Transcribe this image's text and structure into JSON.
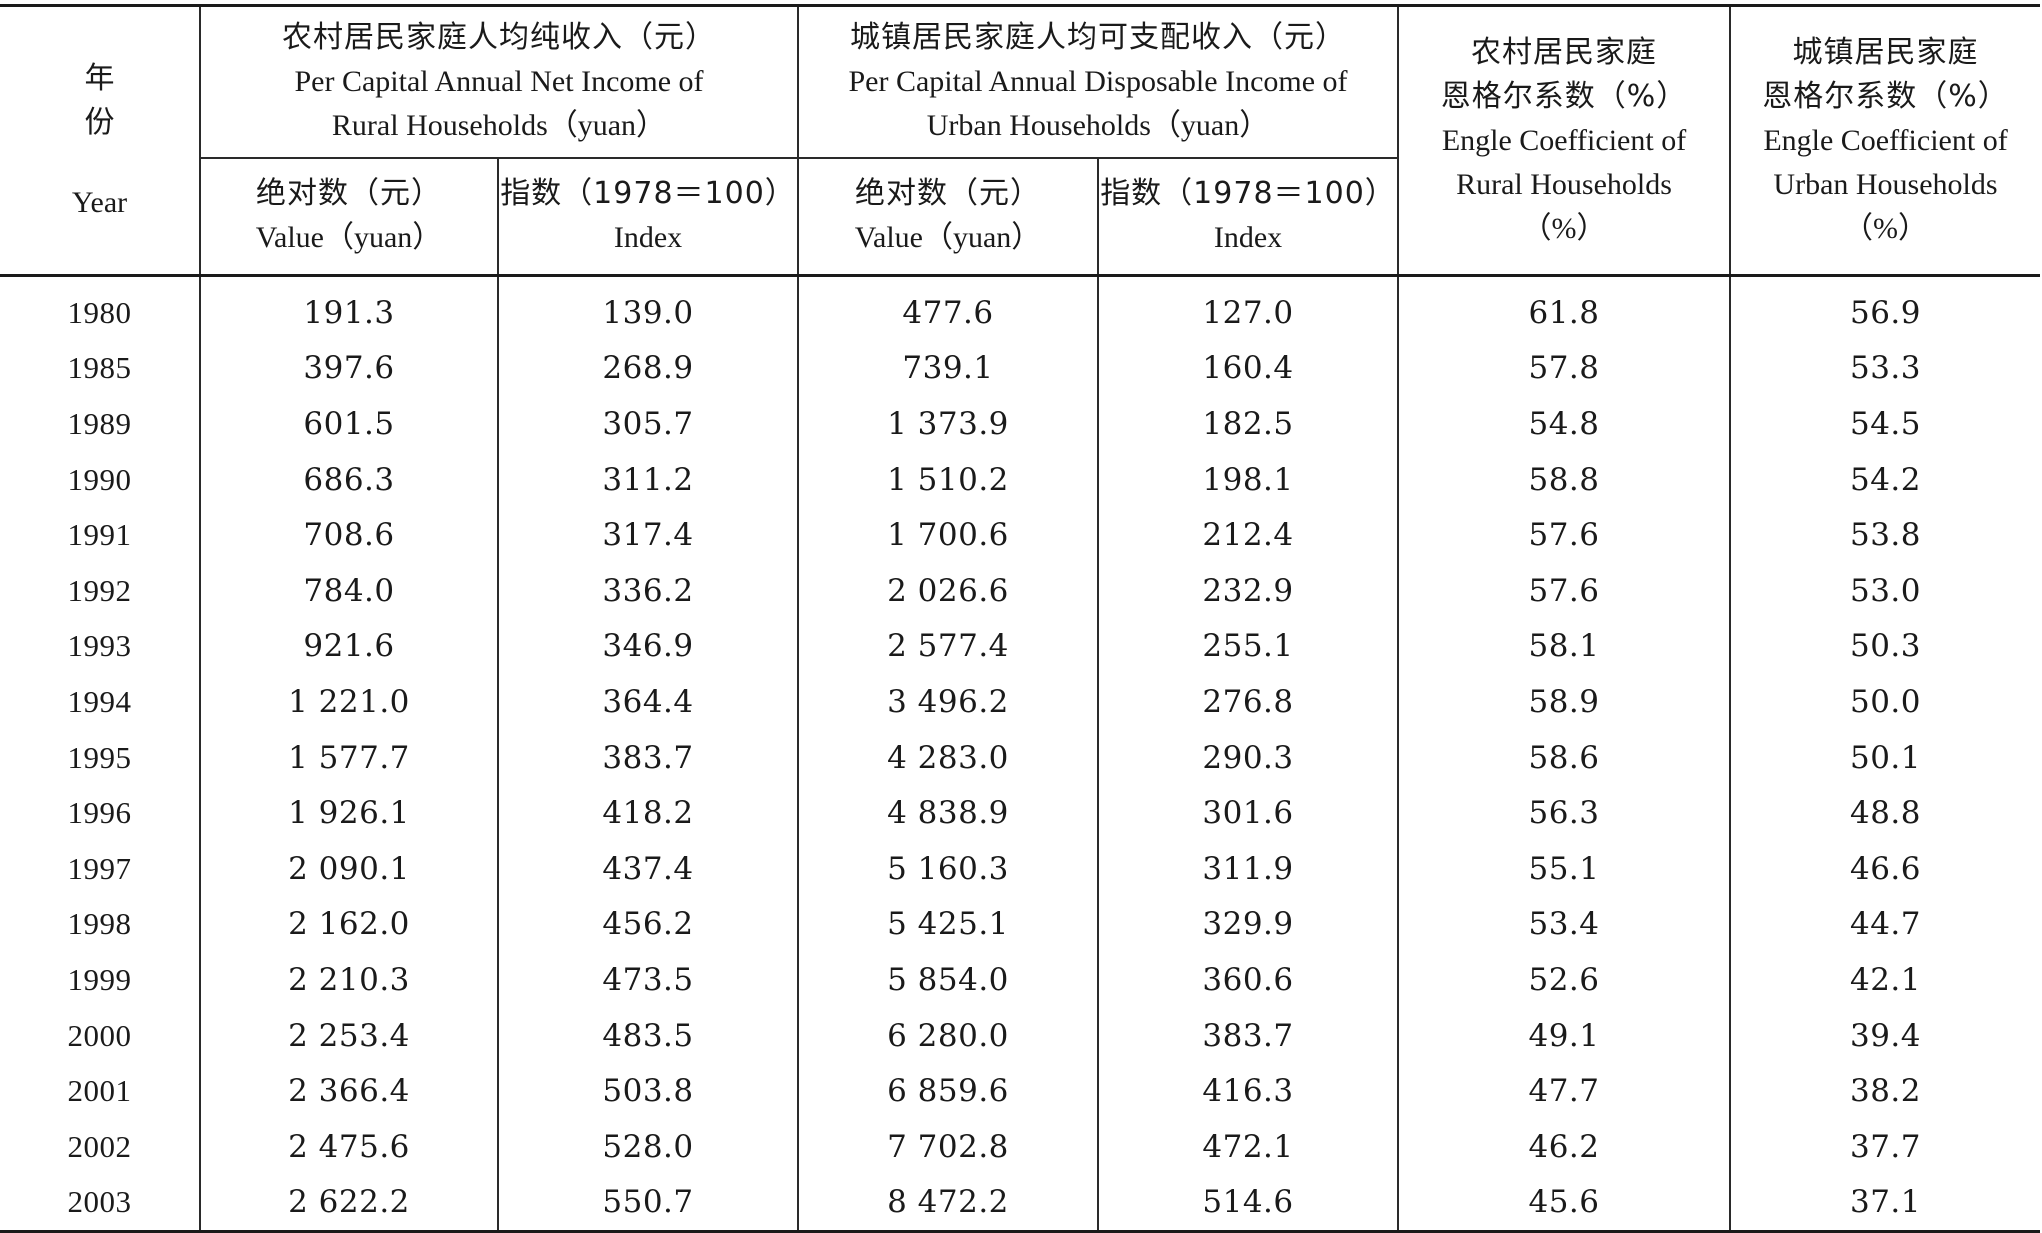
{
  "headers": {
    "year": {
      "zh": "年 份",
      "en": "Year"
    },
    "rural_income": {
      "zh": "农村居民家庭人均纯收入（元）",
      "en1": "Per Capital Annual Net Income of",
      "en2": "Rural Households（yuan）"
    },
    "urban_income": {
      "zh": "城镇居民家庭人均可支配收入（元）",
      "en1": "Per Capital Annual Disposable Income of",
      "en2": "Urban Households（yuan）"
    },
    "rural_engel": {
      "zh1": "农村居民家庭",
      "zh2": "恩格尔系数（%）",
      "en1": "Engle Coefficient of",
      "en2": "Rural Households",
      "en3": "（%）"
    },
    "urban_engel": {
      "zh1": "城镇居民家庭",
      "zh2": "恩格尔系数（%）",
      "en1": "Engle Coefficient of",
      "en2": "Urban Households",
      "en3": "（%）"
    },
    "rural_value": {
      "zh": "绝对数（元）",
      "en": "Value（yuan）"
    },
    "rural_index": {
      "zh": "指数（1978＝100）",
      "en": "Index"
    },
    "urban_value": {
      "zh": "绝对数（元）",
      "en": "Value（yuan）"
    },
    "urban_index": {
      "zh": "指数（1978＝100）",
      "en": "Index"
    }
  },
  "rows": [
    {
      "year": "1980",
      "rural_value": "191.3",
      "rural_index": "139.0",
      "urban_value": "477.6",
      "urban_index": "127.0",
      "rural_engel": "61.8",
      "urban_engel": "56.9"
    },
    {
      "year": "1985",
      "rural_value": "397.6",
      "rural_index": "268.9",
      "urban_value": "739.1",
      "urban_index": "160.4",
      "rural_engel": "57.8",
      "urban_engel": "53.3"
    },
    {
      "year": "1989",
      "rural_value": "601.5",
      "rural_index": "305.7",
      "urban_value": "1 373.9",
      "urban_index": "182.5",
      "rural_engel": "54.8",
      "urban_engel": "54.5"
    },
    {
      "year": "1990",
      "rural_value": "686.3",
      "rural_index": "311.2",
      "urban_value": "1 510.2",
      "urban_index": "198.1",
      "rural_engel": "58.8",
      "urban_engel": "54.2"
    },
    {
      "year": "1991",
      "rural_value": "708.6",
      "rural_index": "317.4",
      "urban_value": "1 700.6",
      "urban_index": "212.4",
      "rural_engel": "57.6",
      "urban_engel": "53.8"
    },
    {
      "year": "1992",
      "rural_value": "784.0",
      "rural_index": "336.2",
      "urban_value": "2 026.6",
      "urban_index": "232.9",
      "rural_engel": "57.6",
      "urban_engel": "53.0"
    },
    {
      "year": "1993",
      "rural_value": "921.6",
      "rural_index": "346.9",
      "urban_value": "2 577.4",
      "urban_index": "255.1",
      "rural_engel": "58.1",
      "urban_engel": "50.3"
    },
    {
      "year": "1994",
      "rural_value": "1 221.0",
      "rural_index": "364.4",
      "urban_value": "3 496.2",
      "urban_index": "276.8",
      "rural_engel": "58.9",
      "urban_engel": "50.0"
    },
    {
      "year": "1995",
      "rural_value": "1 577.7",
      "rural_index": "383.7",
      "urban_value": "4 283.0",
      "urban_index": "290.3",
      "rural_engel": "58.6",
      "urban_engel": "50.1"
    },
    {
      "year": "1996",
      "rural_value": "1 926.1",
      "rural_index": "418.2",
      "urban_value": "4 838.9",
      "urban_index": "301.6",
      "rural_engel": "56.3",
      "urban_engel": "48.8"
    },
    {
      "year": "1997",
      "rural_value": "2 090.1",
      "rural_index": "437.4",
      "urban_value": "5 160.3",
      "urban_index": "311.9",
      "rural_engel": "55.1",
      "urban_engel": "46.6"
    },
    {
      "year": "1998",
      "rural_value": "2 162.0",
      "rural_index": "456.2",
      "urban_value": "5 425.1",
      "urban_index": "329.9",
      "rural_engel": "53.4",
      "urban_engel": "44.7"
    },
    {
      "year": "1999",
      "rural_value": "2 210.3",
      "rural_index": "473.5",
      "urban_value": "5 854.0",
      "urban_index": "360.6",
      "rural_engel": "52.6",
      "urban_engel": "42.1"
    },
    {
      "year": "2000",
      "rural_value": "2 253.4",
      "rural_index": "483.5",
      "urban_value": "6 280.0",
      "urban_index": "383.7",
      "rural_engel": "49.1",
      "urban_engel": "39.4"
    },
    {
      "year": "2001",
      "rural_value": "2 366.4",
      "rural_index": "503.8",
      "urban_value": "6 859.6",
      "urban_index": "416.3",
      "rural_engel": "47.7",
      "urban_engel": "38.2"
    },
    {
      "year": "2002",
      "rural_value": "2 475.6",
      "rural_index": "528.0",
      "urban_value": "7 702.8",
      "urban_index": "472.1",
      "rural_engel": "46.2",
      "urban_engel": "37.7"
    },
    {
      "year": "2003",
      "rural_value": "2 622.2",
      "rural_index": "550.7",
      "urban_value": "8 472.2",
      "urban_index": "514.6",
      "rural_engel": "45.6",
      "urban_engel": "37.1"
    }
  ]
}
